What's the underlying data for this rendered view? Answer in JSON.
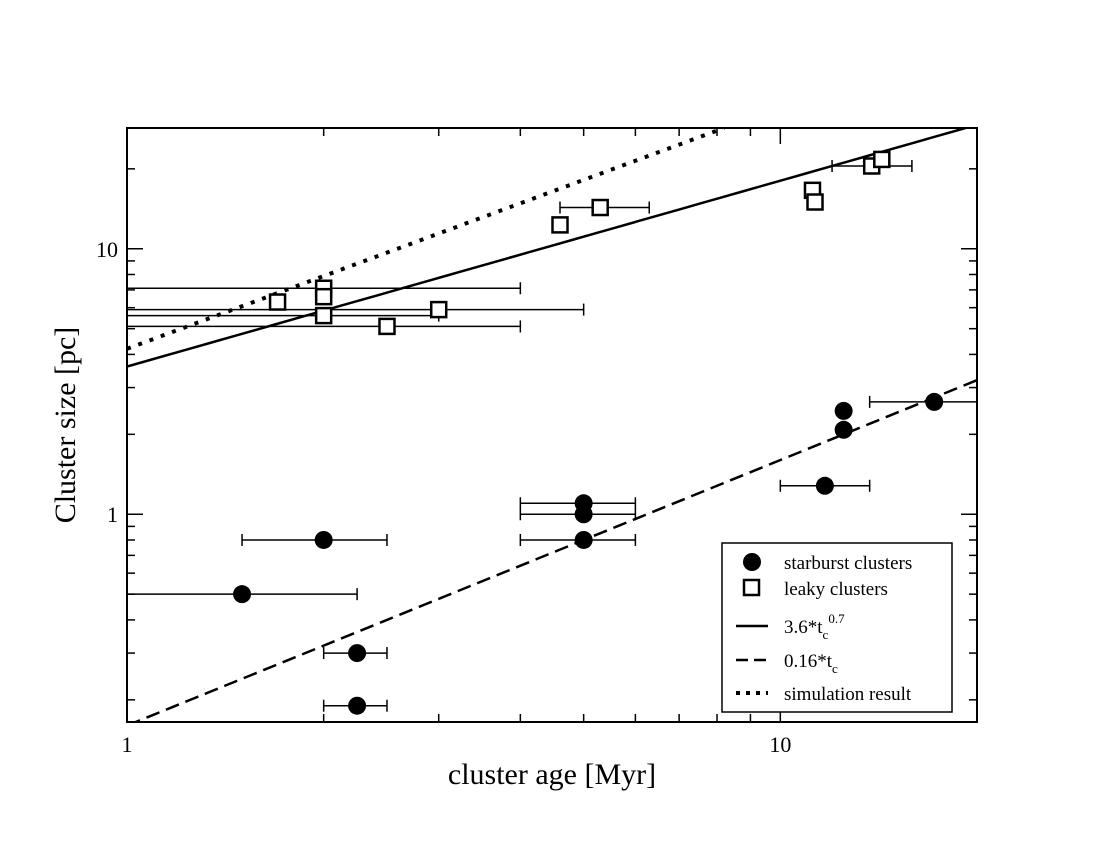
{
  "chart_data": {
    "type": "scatter",
    "title": "",
    "xlabel": "cluster age [Myr]",
    "ylabel": "Cluster size [pc]",
    "xscale": "log",
    "yscale": "log",
    "xlim": [
      1,
      20
    ],
    "ylim": [
      0.165,
      28.5
    ],
    "x_tick_labels": [
      {
        "value": 1,
        "label": "1"
      },
      {
        "value": 10,
        "label": "10"
      }
    ],
    "y_tick_labels": [
      {
        "value": 1,
        "label": "1"
      },
      {
        "value": 10,
        "label": "10"
      }
    ],
    "grid": false,
    "legend_position": "bottom-right",
    "series": [
      {
        "name": "starburst clusters",
        "marker": "filled-circle",
        "color": "#000000",
        "points": [
          {
            "x": 1.5,
            "y": 0.5,
            "xerr": [
              1.0,
              2.25
            ]
          },
          {
            "x": 2.0,
            "y": 0.8,
            "xerr": [
              1.5,
              2.5
            ]
          },
          {
            "x": 2.25,
            "y": 0.3,
            "xerr": [
              2.0,
              2.5
            ]
          },
          {
            "x": 2.25,
            "y": 0.19,
            "xerr": [
              2.0,
              2.5
            ]
          },
          {
            "x": 5.0,
            "y": 1.1,
            "xerr": [
              4.0,
              6.0
            ]
          },
          {
            "x": 5.0,
            "y": 1.0,
            "xerr": [
              4.0,
              6.0
            ]
          },
          {
            "x": 5.0,
            "y": 0.8,
            "xerr": [
              4.0,
              6.0
            ]
          },
          {
            "x": 11.7,
            "y": 1.28,
            "xerr": [
              10.0,
              13.7
            ]
          },
          {
            "x": 12.5,
            "y": 2.45
          },
          {
            "x": 12.5,
            "y": 2.08
          },
          {
            "x": 17.2,
            "y": 2.65,
            "xerr": [
              13.7,
              20.0
            ]
          }
        ]
      },
      {
        "name": "leaky clusters",
        "marker": "open-square",
        "color": "#000000",
        "points": [
          {
            "x": 1.7,
            "y": 6.3
          },
          {
            "x": 2.0,
            "y": 7.1,
            "xerr": [
              1.0,
              4.0
            ]
          },
          {
            "x": 2.0,
            "y": 6.6
          },
          {
            "x": 2.0,
            "y": 5.6,
            "xerr": [
              1.0,
              3.0
            ]
          },
          {
            "x": 3.0,
            "y": 5.9,
            "xerr": [
              1.0,
              5.0
            ]
          },
          {
            "x": 2.5,
            "y": 5.1,
            "xerr": [
              1.0,
              4.0
            ]
          },
          {
            "x": 4.6,
            "y": 12.3
          },
          {
            "x": 5.3,
            "y": 14.3,
            "xerr": [
              4.6,
              6.3
            ]
          },
          {
            "x": 11.2,
            "y": 16.6
          },
          {
            "x": 11.3,
            "y": 15.0,
            "xerr": [
              11.0,
              11.6
            ]
          },
          {
            "x": 13.8,
            "y": 20.5,
            "xerr": [
              12.0,
              15.9
            ]
          },
          {
            "x": 14.3,
            "y": 21.7
          }
        ]
      },
      {
        "name": "3.6*t_c^0.7",
        "type": "line",
        "style": "solid",
        "coefficient": 3.6,
        "exponent": 0.7,
        "x_range": [
          1,
          20
        ]
      },
      {
        "name": "0.16*t_c",
        "type": "line",
        "style": "dashed",
        "coefficient": 0.16,
        "exponent": 1.0,
        "x_range": [
          1,
          20
        ]
      },
      {
        "name": "simulation result",
        "type": "line",
        "style": "dotted",
        "points": [
          {
            "x": 1.0,
            "y": 4.2
          },
          {
            "x": 8.2,
            "y": 28.5
          }
        ]
      }
    ],
    "legend": {
      "entries": [
        {
          "symbol": "filled-circle",
          "label": "starburst clusters"
        },
        {
          "symbol": "open-square",
          "label": "leaky clusters"
        },
        {
          "symbol": "solid-line",
          "label": "3.6*t",
          "sub": "c",
          "sup": "0.7"
        },
        {
          "symbol": "dashed-line",
          "label": "0.16*t",
          "sub": "c"
        },
        {
          "symbol": "dotted-line",
          "label": "simulation result"
        }
      ]
    }
  }
}
